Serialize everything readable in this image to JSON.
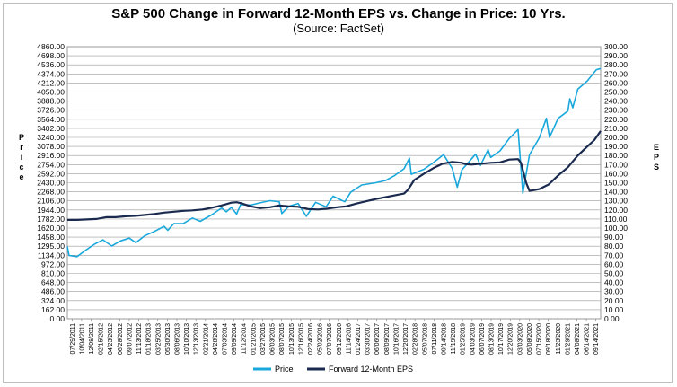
{
  "chart_data": {
    "type": "line",
    "title": "S&P 500 Change in Forward 12-Month EPS vs. Change in Price: 10 Yrs.",
    "subtitle": "(Source: FactSet)",
    "ylabel_left": "Price",
    "ylabel_right": "EPS",
    "ylim_left": [
      0,
      4860
    ],
    "ylim_right": [
      0,
      300
    ],
    "left_ticks": [
      "0.00",
      "162.00",
      "324.00",
      "486.00",
      "648.00",
      "810.00",
      "972.00",
      "1134.00",
      "1295.00",
      "1458.00",
      "1620.00",
      "1782.00",
      "1944.00",
      "2106.00",
      "2268.00",
      "2430.00",
      "2592.00",
      "2754.00",
      "2916.00",
      "3078.00",
      "3240.00",
      "3402.00",
      "3564.00",
      "3726.00",
      "3888.00",
      "4050.00",
      "4212.00",
      "4374.00",
      "4536.00",
      "4698.00",
      "4860.00"
    ],
    "right_ticks": [
      "0.00",
      "10.00",
      "20.00",
      "30.00",
      "40.00",
      "50.00",
      "60.00",
      "70.00",
      "80.00",
      "90.00",
      "100.00",
      "110.00",
      "120.00",
      "130.00",
      "140.00",
      "150.00",
      "160.00",
      "170.00",
      "180.00",
      "190.00",
      "200.00",
      "210.00",
      "220.00",
      "230.00",
      "240.00",
      "250.00",
      "260.00",
      "270.00",
      "280.00",
      "290.00",
      "300.00"
    ],
    "x_tick_labels": [
      "07/29/2011",
      "10/04/2011",
      "12/08/2011",
      "02/15/2012",
      "04/23/2012",
      "06/28/2012",
      "09/07/2012",
      "11/13/2012",
      "01/18/2013",
      "03/25/2013",
      "05/30/2013",
      "08/06/2013",
      "10/10/2013",
      "12/13/2013",
      "02/21/2014",
      "04/28/2014",
      "07/03/2014",
      "09/09/2014",
      "11/12/2014",
      "01/21/2015",
      "03/27/2015",
      "06/03/2015",
      "08/07/2015",
      "10/13/2015",
      "12/16/2015",
      "02/24/2016",
      "05/02/2016",
      "07/07/2016",
      "09/12/2016",
      "11/14/2016",
      "01/24/2017",
      "03/30/2017",
      "06/06/2017",
      "08/09/2017",
      "10/16/2017",
      "12/20/2017",
      "02/28/2018",
      "05/07/2018",
      "07/11/2018",
      "09/14/2018",
      "11/19/2018",
      "01/25/2019",
      "04/03/2019",
      "06/07/2019",
      "08/13/2019",
      "10/17/2019",
      "12/20/2019",
      "03/03/2020",
      "05/08/2020",
      "07/15/2020",
      "09/18/2020",
      "11/23/2020",
      "01/29/2021",
      "04/08/2021",
      "06/14/2021",
      "09/14/2021"
    ],
    "x_range": [
      "2011-07-29",
      "2021-09-14"
    ],
    "grid": true,
    "legend_position": "bottom",
    "series": [
      {
        "name": "Price",
        "axis": "left",
        "color": "#19a8dc",
        "points": [
          [
            "2011-07-29",
            1290
          ],
          [
            "2011-08-10",
            1130
          ],
          [
            "2011-10-04",
            1110
          ],
          [
            "2011-12-01",
            1220
          ],
          [
            "2012-02-01",
            1330
          ],
          [
            "2012-04-01",
            1410
          ],
          [
            "2012-06-01",
            1300
          ],
          [
            "2012-08-01",
            1390
          ],
          [
            "2012-10-01",
            1440
          ],
          [
            "2012-11-15",
            1360
          ],
          [
            "2013-01-15",
            1480
          ],
          [
            "2013-03-25",
            1560
          ],
          [
            "2013-05-30",
            1650
          ],
          [
            "2013-06-25",
            1580
          ],
          [
            "2013-08-06",
            1700
          ],
          [
            "2013-10-10",
            1700
          ],
          [
            "2013-12-13",
            1800
          ],
          [
            "2014-02-05",
            1740
          ],
          [
            "2014-04-28",
            1860
          ],
          [
            "2014-07-03",
            1980
          ],
          [
            "2014-08-05",
            1910
          ],
          [
            "2014-09-09",
            1990
          ],
          [
            "2014-10-15",
            1870
          ],
          [
            "2014-11-12",
            2040
          ],
          [
            "2015-01-21",
            2030
          ],
          [
            "2015-03-27",
            2070
          ],
          [
            "2015-06-03",
            2110
          ],
          [
            "2015-08-07",
            2090
          ],
          [
            "2015-08-25",
            1880
          ],
          [
            "2015-10-13",
            2010
          ],
          [
            "2015-12-16",
            2060
          ],
          [
            "2016-02-11",
            1830
          ],
          [
            "2016-04-15",
            2080
          ],
          [
            "2016-06-27",
            2000
          ],
          [
            "2016-08-15",
            2190
          ],
          [
            "2016-11-04",
            2090
          ],
          [
            "2016-12-15",
            2260
          ],
          [
            "2017-03-01",
            2390
          ],
          [
            "2017-06-06",
            2430
          ],
          [
            "2017-08-15",
            2470
          ],
          [
            "2017-10-16",
            2560
          ],
          [
            "2017-12-20",
            2680
          ],
          [
            "2018-01-26",
            2870
          ],
          [
            "2018-02-08",
            2580
          ],
          [
            "2018-05-07",
            2670
          ],
          [
            "2018-07-11",
            2790
          ],
          [
            "2018-09-20",
            2930
          ],
          [
            "2018-11-19",
            2690
          ],
          [
            "2018-12-24",
            2350
          ],
          [
            "2019-01-25",
            2660
          ],
          [
            "2019-04-30",
            2940
          ],
          [
            "2019-06-03",
            2740
          ],
          [
            "2019-07-26",
            3020
          ],
          [
            "2019-08-13",
            2880
          ],
          [
            "2019-10-17",
            3000
          ],
          [
            "2019-12-20",
            3220
          ],
          [
            "2020-02-19",
            3380
          ],
          [
            "2020-03-23",
            2240
          ],
          [
            "2020-05-08",
            2930
          ],
          [
            "2020-07-15",
            3230
          ],
          [
            "2020-09-02",
            3580
          ],
          [
            "2020-09-24",
            3240
          ],
          [
            "2020-11-23",
            3580
          ],
          [
            "2021-01-29",
            3710
          ],
          [
            "2021-02-12",
            3930
          ],
          [
            "2021-03-04",
            3770
          ],
          [
            "2021-04-08",
            4100
          ],
          [
            "2021-06-14",
            4250
          ],
          [
            "2021-08-15",
            4450
          ],
          [
            "2021-09-14",
            4470
          ]
        ]
      },
      {
        "name": "Forward 12-Month EPS",
        "axis": "right",
        "color": "#1a2a4f",
        "points": [
          [
            "2011-07-29",
            109
          ],
          [
            "2011-10-04",
            109
          ],
          [
            "2011-12-08",
            109.5
          ],
          [
            "2012-02-15",
            110
          ],
          [
            "2012-04-23",
            112
          ],
          [
            "2012-06-28",
            112
          ],
          [
            "2012-09-07",
            113
          ],
          [
            "2012-11-13",
            113.5
          ],
          [
            "2013-01-18",
            114.5
          ],
          [
            "2013-03-25",
            115.5
          ],
          [
            "2013-05-30",
            117
          ],
          [
            "2013-08-06",
            118
          ],
          [
            "2013-10-10",
            119
          ],
          [
            "2013-12-13",
            119.5
          ],
          [
            "2014-02-21",
            120.5
          ],
          [
            "2014-04-28",
            122.5
          ],
          [
            "2014-07-03",
            125
          ],
          [
            "2014-09-09",
            128
          ],
          [
            "2014-10-15",
            128.5
          ],
          [
            "2014-11-12",
            127.5
          ],
          [
            "2015-01-21",
            124
          ],
          [
            "2015-03-27",
            122
          ],
          [
            "2015-06-03",
            123
          ],
          [
            "2015-08-07",
            125
          ],
          [
            "2015-10-13",
            124
          ],
          [
            "2015-12-16",
            123.5
          ],
          [
            "2016-02-24",
            121
          ],
          [
            "2016-05-02",
            120.5
          ],
          [
            "2016-07-07",
            121.5
          ],
          [
            "2016-09-12",
            123
          ],
          [
            "2016-11-14",
            124
          ],
          [
            "2017-01-24",
            127
          ],
          [
            "2017-03-30",
            129.5
          ],
          [
            "2017-06-06",
            132
          ],
          [
            "2017-08-09",
            134
          ],
          [
            "2017-10-16",
            136
          ],
          [
            "2017-12-20",
            138
          ],
          [
            "2018-01-15",
            142
          ],
          [
            "2018-02-28",
            153
          ],
          [
            "2018-05-07",
            160
          ],
          [
            "2018-07-11",
            166
          ],
          [
            "2018-09-14",
            171
          ],
          [
            "2018-11-19",
            173
          ],
          [
            "2019-01-25",
            172
          ],
          [
            "2019-02-20",
            170.5
          ],
          [
            "2019-04-03",
            170
          ],
          [
            "2019-06-07",
            171
          ],
          [
            "2019-08-13",
            172
          ],
          [
            "2019-10-17",
            172.5
          ],
          [
            "2019-12-20",
            175.5
          ],
          [
            "2020-02-19",
            176
          ],
          [
            "2020-03-10",
            172
          ],
          [
            "2020-04-15",
            150
          ],
          [
            "2020-05-08",
            141
          ],
          [
            "2020-06-15",
            142
          ],
          [
            "2020-07-15",
            143
          ],
          [
            "2020-09-18",
            148
          ],
          [
            "2020-11-23",
            158
          ],
          [
            "2021-01-29",
            167
          ],
          [
            "2021-04-08",
            180
          ],
          [
            "2021-06-14",
            190
          ],
          [
            "2021-08-01",
            197
          ],
          [
            "2021-09-14",
            207
          ]
        ]
      }
    ]
  }
}
